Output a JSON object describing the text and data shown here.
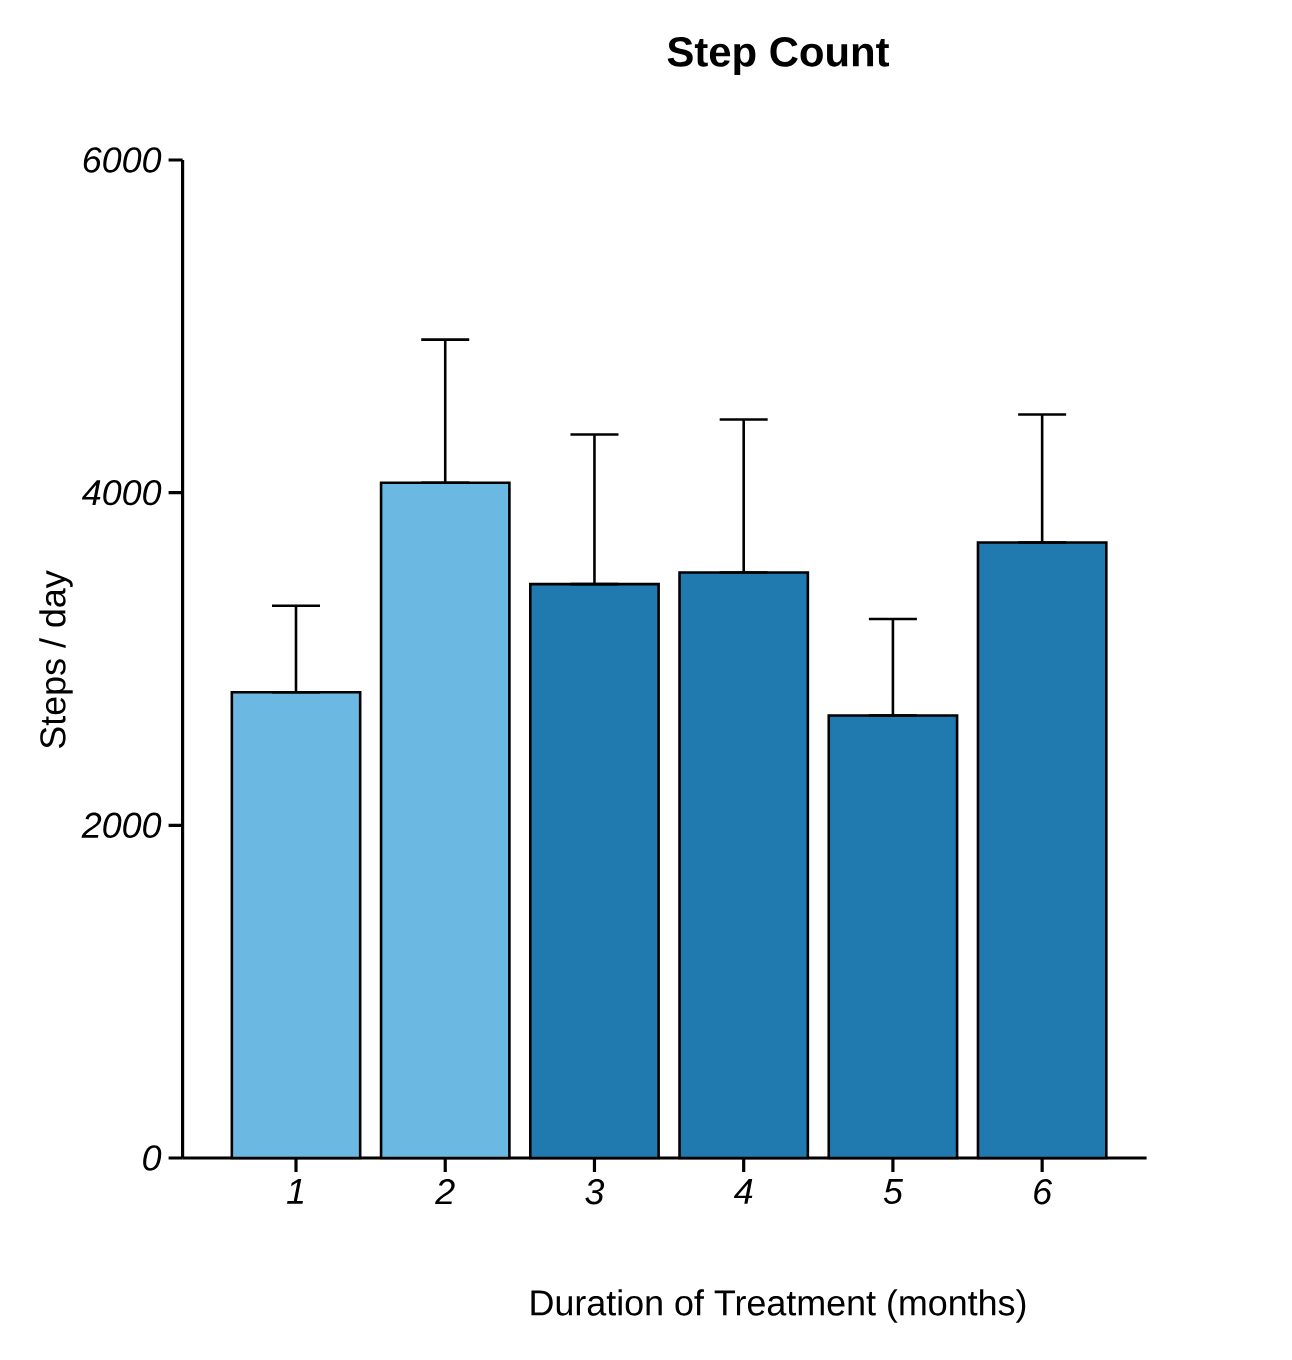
{
  "chart_data": {
    "type": "bar",
    "title": "Step Count",
    "xlabel": "Duration of Treatment (months)",
    "ylabel": "Steps / day",
    "categories": [
      "1",
      "2",
      "3",
      "4",
      "5",
      "6"
    ],
    "values": [
      2800,
      4060,
      3450,
      3520,
      2660,
      3700
    ],
    "colors": [
      "#6bb8e2",
      "#6bb8e2",
      "#207ab0",
      "#207ab0",
      "#207ab0",
      "#207ab0"
    ],
    "errors": [
      [
        2800,
        3320
      ],
      [
        4060,
        4920
      ],
      [
        3450,
        4350
      ],
      [
        3520,
        4440
      ],
      [
        2660,
        3240
      ],
      [
        3700,
        4470
      ]
    ],
    "ylim": [
      0,
      6000
    ],
    "yticks": [
      0,
      2000,
      4000,
      6000
    ],
    "grid": false
  }
}
